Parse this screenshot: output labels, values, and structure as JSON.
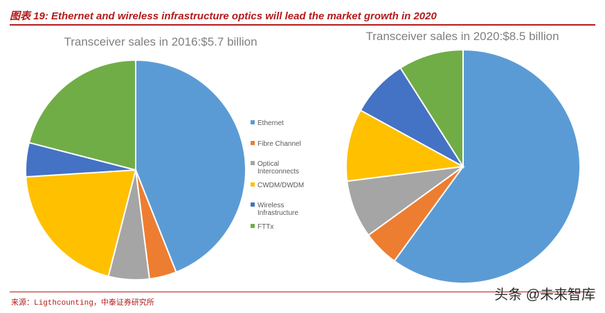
{
  "figure": {
    "title": "图表 19:  Ethernet and wireless infrastructure optics will lead the market growth in 2020",
    "source": "来源：Ligthcounting，中泰证券研究所",
    "watermark": "头条 @未来智库"
  },
  "colors": {
    "Ethernet": "#5b9bd5",
    "Fibre Channel": "#ed7d31",
    "Optical Interconnects": "#a5a5a5",
    "CWDM/DWDM": "#ffc000",
    "Wireless Infrastructure": "#4472c4",
    "FTTx": "#70ad47",
    "accent": "#b31b1b"
  },
  "legend": {
    "placement": "between charts",
    "entries": [
      {
        "name": "Ethernet",
        "lines": [
          "Ethernet"
        ]
      },
      {
        "name": "Fibre Channel",
        "lines": [
          "Fibre Channel"
        ]
      },
      {
        "name": "Optical Interconnects",
        "lines": [
          "Optical",
          "Interconnects"
        ]
      },
      {
        "name": "CWDM/DWDM",
        "lines": [
          "CWDM/DWDM"
        ]
      },
      {
        "name": "Wireless Infrastructure",
        "lines": [
          "Wireless",
          "Infrastructure"
        ]
      },
      {
        "name": "FTTx",
        "lines": [
          "FTTx"
        ]
      }
    ]
  },
  "chart_data": [
    {
      "type": "pie",
      "title": "Transceiver sales in 2016:$5.7 billion",
      "categories": [
        "Ethernet",
        "Fibre Channel",
        "Optical Interconnects",
        "CWDM/DWDM",
        "Wireless Infrastructure",
        "FTTx"
      ],
      "values": [
        44,
        4,
        6,
        20,
        5,
        21
      ]
    },
    {
      "type": "pie",
      "title": "Transceiver sales in 2020:$8.5 billion",
      "categories": [
        "Ethernet",
        "Fibre Channel",
        "Optical Interconnects",
        "CWDM/DWDM",
        "Wireless Infrastructure",
        "FTTx"
      ],
      "values": [
        60,
        5,
        8,
        10,
        8,
        9
      ]
    }
  ]
}
